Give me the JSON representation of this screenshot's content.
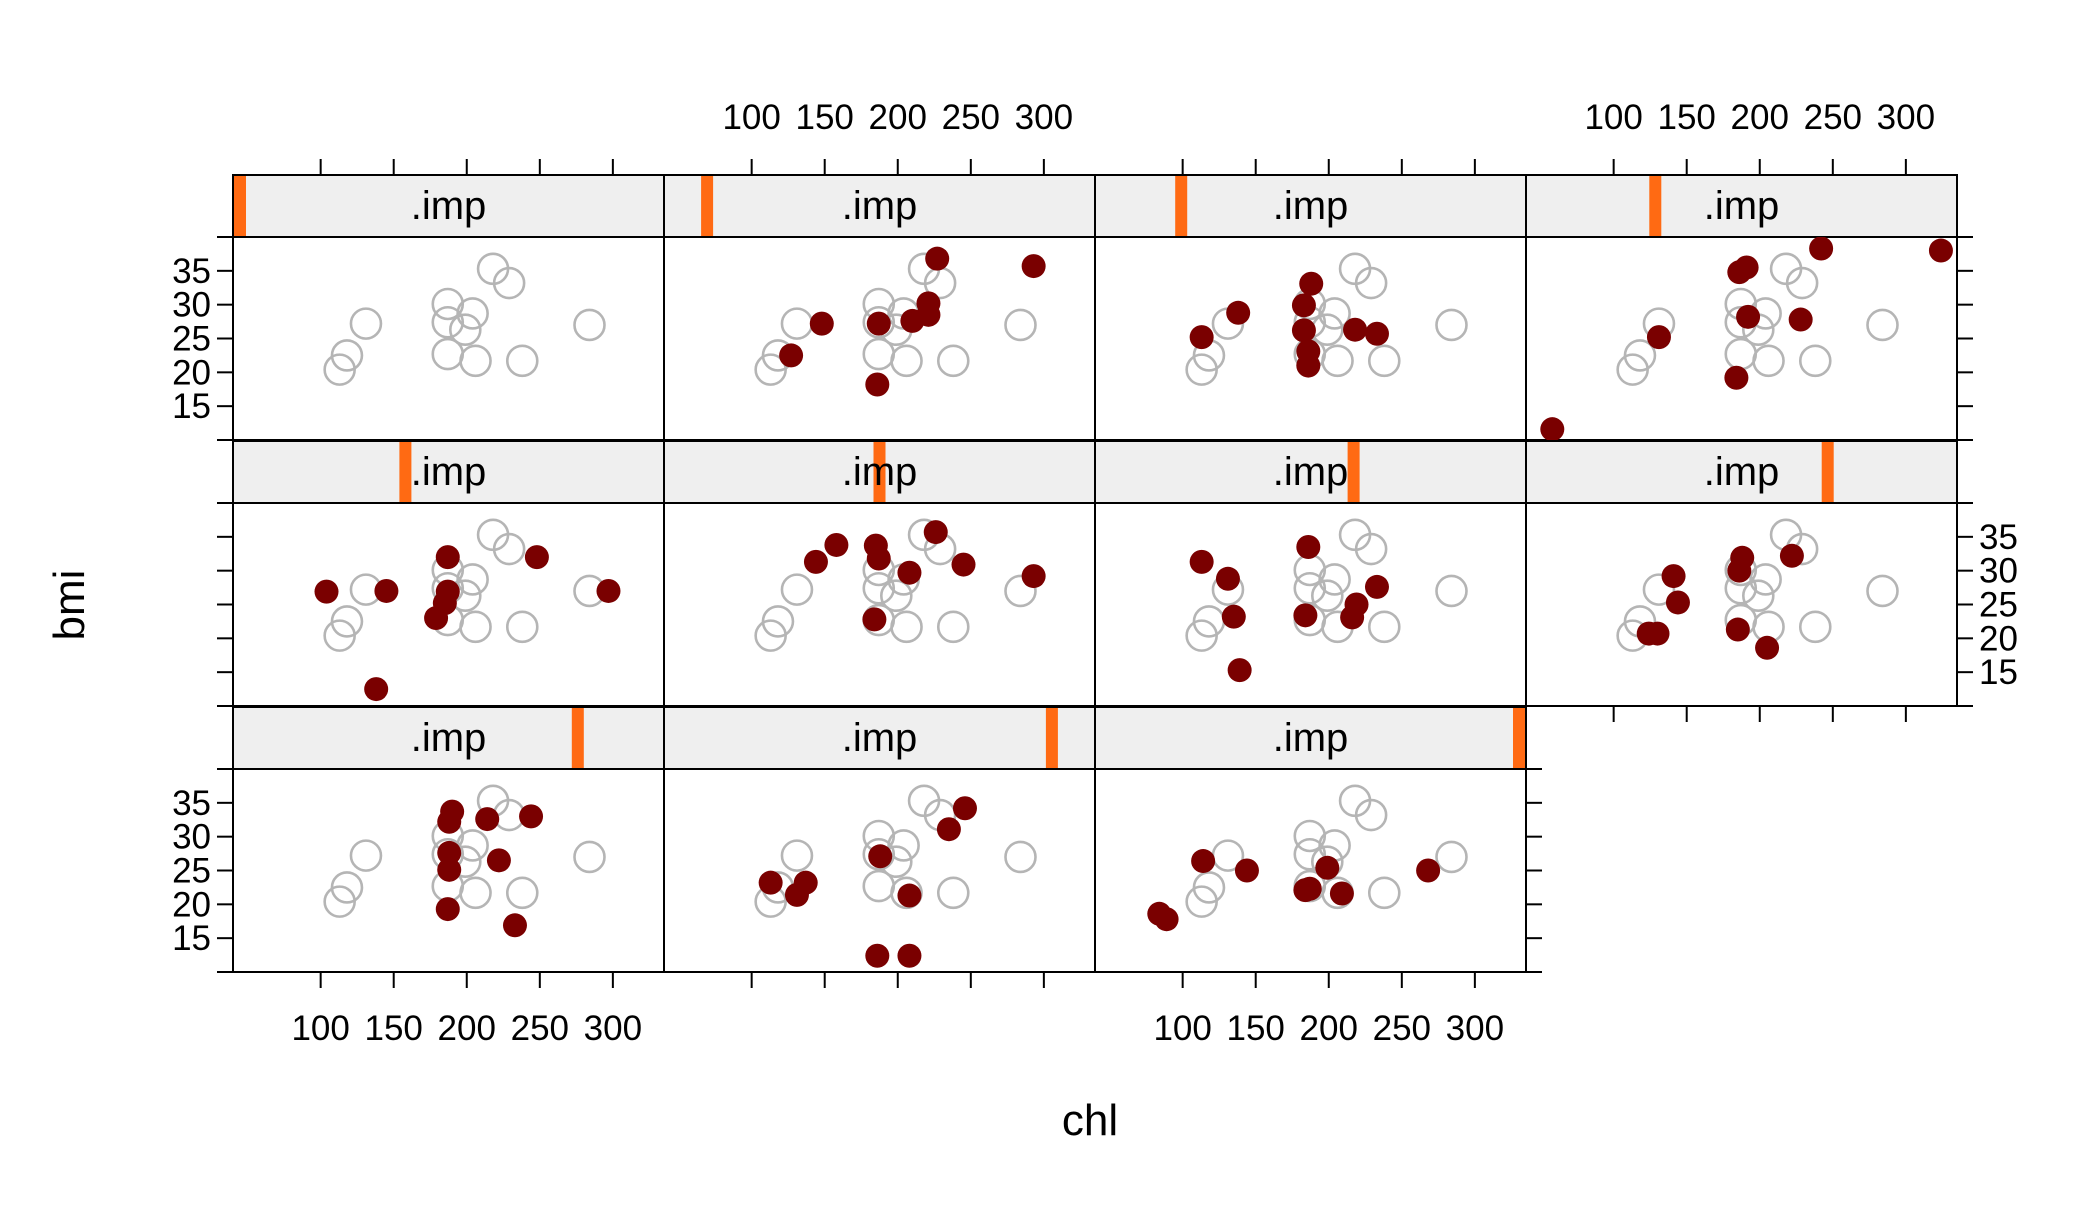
{
  "chart_data": {
    "type": "scatter",
    "layout": "trellis panels, 4 columns x 3 rows, 11 panels",
    "xlabel": "chl",
    "ylabel": "bmi",
    "strip_label": ".imp",
    "xlim": [
      40,
      335
    ],
    "ylim": [
      10,
      40
    ],
    "x_ticks": [
      100,
      150,
      200,
      250,
      300
    ],
    "y_ticks": [
      15,
      20,
      25,
      30,
      35
    ],
    "grid": false,
    "legend": "none",
    "colors": {
      "observed": "#b5b5b5",
      "imputed": "#7a0000",
      "strip_background": "#efefef",
      "strip_marker": "#ff6a13"
    },
    "observed": [
      {
        "x": 113,
        "y": 20.4
      },
      {
        "x": 118,
        "y": 22.5
      },
      {
        "x": 131,
        "y": 27.2
      },
      {
        "x": 187,
        "y": 30.1
      },
      {
        "x": 187,
        "y": 27.4
      },
      {
        "x": 187,
        "y": 22.7
      },
      {
        "x": 199,
        "y": 26.3
      },
      {
        "x": 204,
        "y": 28.7
      },
      {
        "x": 206,
        "y": 21.7
      },
      {
        "x": 218,
        "y": 35.3
      },
      {
        "x": 229,
        "y": 33.2
      },
      {
        "x": 238,
        "y": 21.7
      },
      {
        "x": 284,
        "y": 27.0
      }
    ],
    "panels": [
      {
        "imp": 0,
        "imputed": []
      },
      {
        "imp": 1,
        "imputed": [
          {
            "x": 127,
            "y": 22.5
          },
          {
            "x": 148,
            "y": 27.2
          },
          {
            "x": 186,
            "y": 18.2
          },
          {
            "x": 187,
            "y": 27.2
          },
          {
            "x": 210,
            "y": 27.6
          },
          {
            "x": 221,
            "y": 30.2
          },
          {
            "x": 221,
            "y": 28.5
          },
          {
            "x": 227,
            "y": 36.8
          },
          {
            "x": 293,
            "y": 35.7
          }
        ]
      },
      {
        "imp": 2,
        "imputed": [
          {
            "x": 113,
            "y": 25.2
          },
          {
            "x": 138,
            "y": 28.8
          },
          {
            "x": 183,
            "y": 29.9
          },
          {
            "x": 183,
            "y": 26.2
          },
          {
            "x": 186,
            "y": 23.1
          },
          {
            "x": 186,
            "y": 21.0
          },
          {
            "x": 188,
            "y": 33.1
          },
          {
            "x": 218,
            "y": 26.3
          },
          {
            "x": 233,
            "y": 25.7
          }
        ]
      },
      {
        "imp": 3,
        "imputed": [
          {
            "x": 58,
            "y": 11.6
          },
          {
            "x": 131,
            "y": 25.2
          },
          {
            "x": 184,
            "y": 19.2
          },
          {
            "x": 186,
            "y": 34.8
          },
          {
            "x": 191,
            "y": 35.5
          },
          {
            "x": 192,
            "y": 28.2
          },
          {
            "x": 228,
            "y": 27.8
          },
          {
            "x": 242,
            "y": 38.3
          },
          {
            "x": 324,
            "y": 38.0
          }
        ]
      },
      {
        "imp": 4,
        "imputed": [
          {
            "x": 104,
            "y": 26.9
          },
          {
            "x": 138,
            "y": 12.5
          },
          {
            "x": 145,
            "y": 27.0
          },
          {
            "x": 179,
            "y": 23.0
          },
          {
            "x": 185,
            "y": 25.2
          },
          {
            "x": 187,
            "y": 26.9
          },
          {
            "x": 187,
            "y": 32.0
          },
          {
            "x": 248,
            "y": 32.0
          },
          {
            "x": 297,
            "y": 27.0
          }
        ]
      },
      {
        "imp": 5,
        "imputed": [
          {
            "x": 144,
            "y": 31.3
          },
          {
            "x": 158,
            "y": 33.8
          },
          {
            "x": 184,
            "y": 22.8
          },
          {
            "x": 185,
            "y": 33.7
          },
          {
            "x": 187,
            "y": 31.8
          },
          {
            "x": 208,
            "y": 29.7
          },
          {
            "x": 226,
            "y": 35.7
          },
          {
            "x": 245,
            "y": 30.9
          },
          {
            "x": 293,
            "y": 29.2
          }
        ]
      },
      {
        "imp": 6,
        "imputed": [
          {
            "x": 113,
            "y": 31.3
          },
          {
            "x": 131,
            "y": 28.8
          },
          {
            "x": 135,
            "y": 23.2
          },
          {
            "x": 139,
            "y": 15.3
          },
          {
            "x": 184,
            "y": 23.4
          },
          {
            "x": 186,
            "y": 33.5
          },
          {
            "x": 216,
            "y": 23.1
          },
          {
            "x": 219,
            "y": 25.0
          },
          {
            "x": 233,
            "y": 27.6
          }
        ]
      },
      {
        "imp": 7,
        "imputed": [
          {
            "x": 124,
            "y": 20.7
          },
          {
            "x": 130,
            "y": 20.7
          },
          {
            "x": 141,
            "y": 29.2
          },
          {
            "x": 144,
            "y": 25.3
          },
          {
            "x": 185,
            "y": 21.3
          },
          {
            "x": 186,
            "y": 30.0
          },
          {
            "x": 188,
            "y": 31.9
          },
          {
            "x": 205,
            "y": 18.6
          },
          {
            "x": 222,
            "y": 32.2
          }
        ]
      },
      {
        "imp": 8,
        "imputed": [
          {
            "x": 187,
            "y": 19.3
          },
          {
            "x": 188,
            "y": 27.6
          },
          {
            "x": 188,
            "y": 25.1
          },
          {
            "x": 188,
            "y": 32.2
          },
          {
            "x": 190,
            "y": 33.7
          },
          {
            "x": 214,
            "y": 32.6
          },
          {
            "x": 222,
            "y": 26.5
          },
          {
            "x": 233,
            "y": 16.9
          },
          {
            "x": 244,
            "y": 33.0
          }
        ]
      },
      {
        "imp": 9,
        "imputed": [
          {
            "x": 113,
            "y": 23.2
          },
          {
            "x": 131,
            "y": 21.4
          },
          {
            "x": 137,
            "y": 23.2
          },
          {
            "x": 186,
            "y": 12.4
          },
          {
            "x": 188,
            "y": 27.1
          },
          {
            "x": 208,
            "y": 21.3
          },
          {
            "x": 208,
            "y": 12.4
          },
          {
            "x": 235,
            "y": 31.1
          },
          {
            "x": 246,
            "y": 34.2
          }
        ]
      },
      {
        "imp": 10,
        "imputed": [
          {
            "x": 84,
            "y": 18.6
          },
          {
            "x": 89,
            "y": 17.8
          },
          {
            "x": 114,
            "y": 26.4
          },
          {
            "x": 144,
            "y": 25.0
          },
          {
            "x": 184,
            "y": 22.1
          },
          {
            "x": 187,
            "y": 22.3
          },
          {
            "x": 199,
            "y": 25.4
          },
          {
            "x": 209,
            "y": 21.6
          },
          {
            "x": 268,
            "y": 25.0
          }
        ]
      }
    ]
  }
}
